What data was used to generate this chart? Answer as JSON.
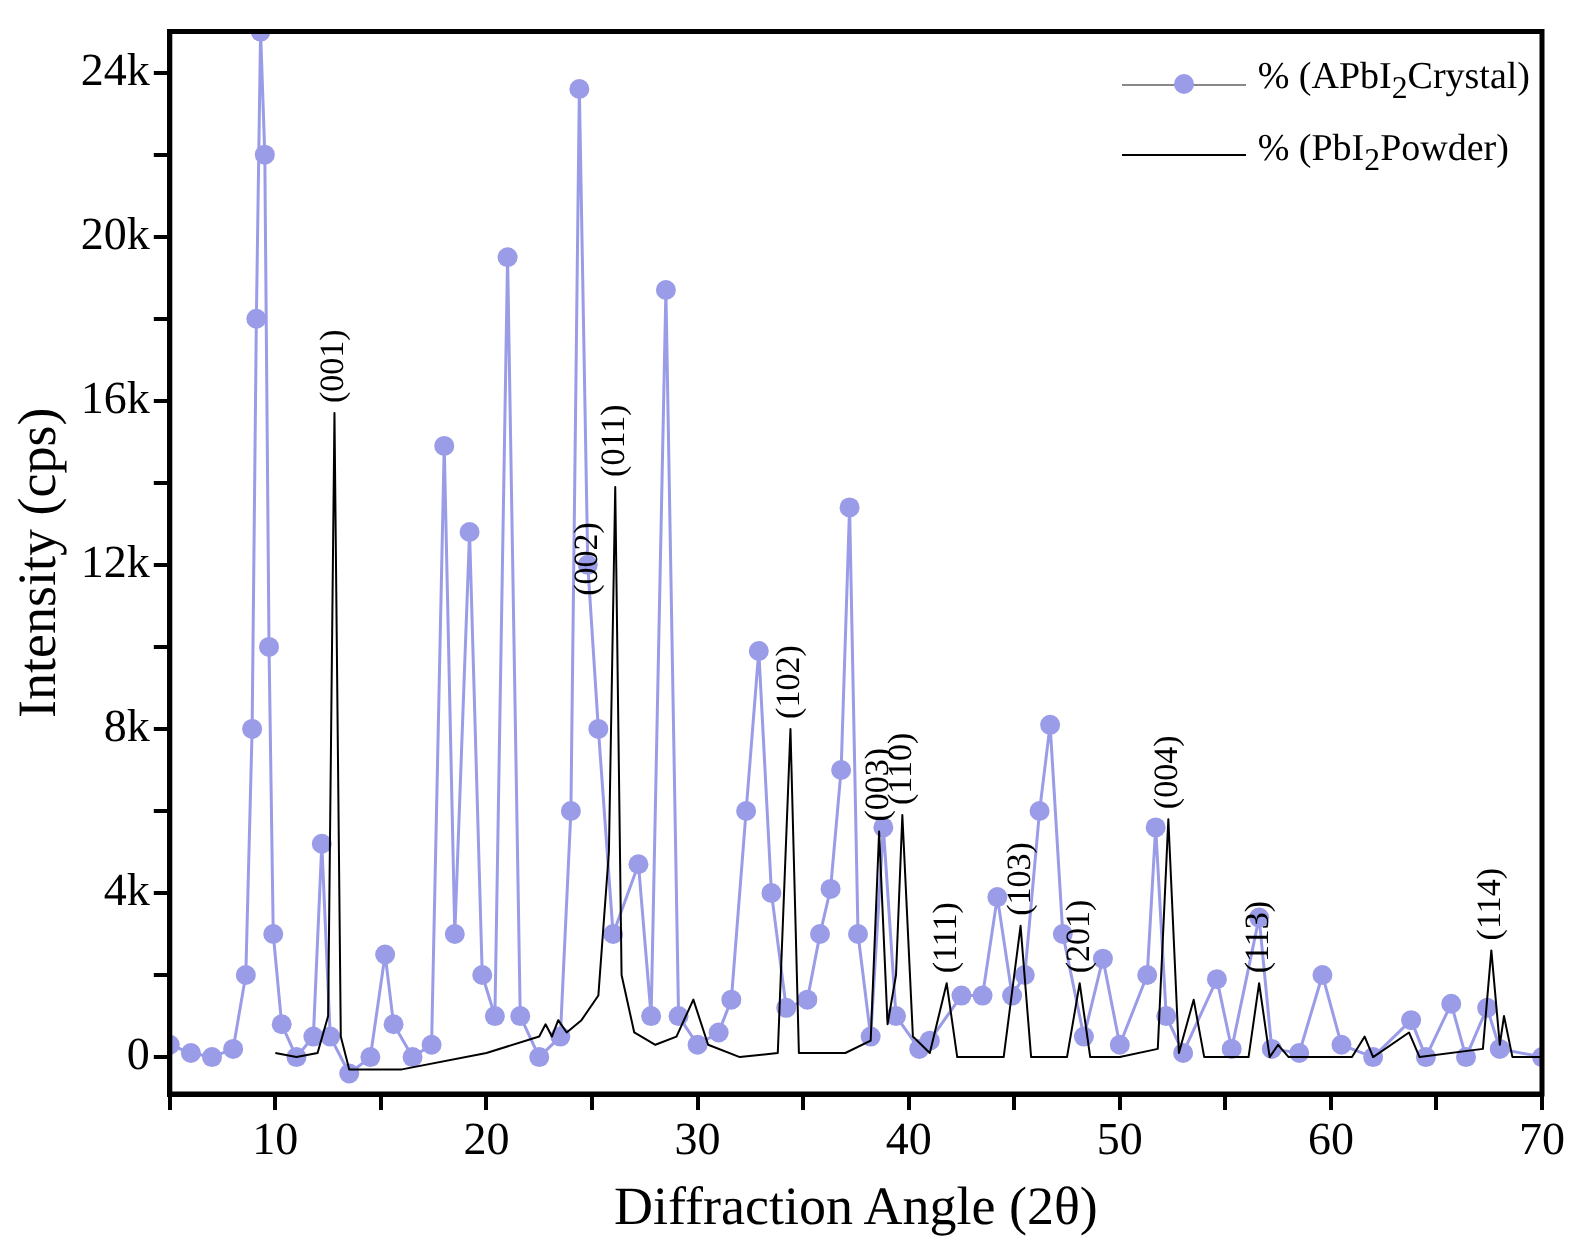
{
  "chart_data": {
    "type": "line",
    "xlabel": "Diffraction Angle (2θ)",
    "ylabel": "Intensity (cps)",
    "xlim": [
      5,
      70
    ],
    "xticks": [
      {
        "value": 5,
        "label": null
      },
      10,
      {
        "value": 15,
        "label": null
      },
      20,
      {
        "value": 25,
        "label": null
      },
      30,
      {
        "value": 35,
        "label": null
      },
      40,
      {
        "value": 45,
        "label": null
      },
      50,
      {
        "value": 55,
        "label": null
      },
      60,
      {
        "value": 65,
        "label": null
      },
      70
    ],
    "ylim": [
      -900,
      25000
    ],
    "yticks": [
      {
        "value": 0,
        "label": "0"
      },
      {
        "value": 2000,
        "label": null
      },
      {
        "value": 4000,
        "label": "4k"
      },
      {
        "value": 6000,
        "label": null
      },
      {
        "value": 8000,
        "label": "8k"
      },
      {
        "value": 10000,
        "label": null
      },
      {
        "value": 12000,
        "label": "12k"
      },
      {
        "value": 14000,
        "label": null
      },
      {
        "value": 16000,
        "label": "16k"
      },
      {
        "value": 18000,
        "label": null
      },
      {
        "value": 20000,
        "label": "20k"
      },
      {
        "value": 22000,
        "label": null
      },
      {
        "value": 24000,
        "label": "24k"
      }
    ],
    "grid": false,
    "legend": "top right",
    "line_style": "solid",
    "series": [
      {
        "name": "% (APbI$_{2}$Crystal)",
        "color": "#9a9ce8",
        "marker": "circle",
        "x": [
          5,
          6,
          7,
          8,
          8.6,
          8.9,
          9.1,
          9.3,
          9.5,
          9.7,
          9.9,
          10.3,
          11,
          11.8,
          12.2,
          12.6,
          13.5,
          14.5,
          15.2,
          15.6,
          16.5,
          17.4,
          18.0,
          18.5,
          19.2,
          19.8,
          20.4,
          21.0,
          21.6,
          22.5,
          23.5,
          24.0,
          24.4,
          24.8,
          25.3,
          26.0,
          27.2,
          27.8,
          28.5,
          29.1,
          30,
          31,
          31.6,
          32.3,
          32.9,
          33.5,
          34.2,
          35.2,
          35.8,
          36.3,
          36.8,
          37.2,
          37.6,
          38.2,
          38.8,
          39.4,
          40.5,
          41,
          42.5,
          43.5,
          44.2,
          44.9,
          45.5,
          46.2,
          46.7,
          47.3,
          48.3,
          49.2,
          50.0,
          51.3,
          51.7,
          52.2,
          53,
          54.6,
          55.3,
          56.6,
          57.2,
          58.5,
          59.6,
          60.5,
          62,
          63.8,
          64.5,
          65.7,
          66.4,
          67.4,
          68,
          70
        ],
        "values": [
          300,
          100,
          0,
          200,
          2000,
          8000,
          18000,
          25000,
          22000,
          10000,
          3000,
          800,
          0,
          500,
          5200,
          500,
          -400,
          0,
          2500,
          800,
          0,
          300,
          14900,
          3000,
          12800,
          2000,
          1000,
          19500,
          1000,
          0,
          500,
          6000,
          23600,
          12000,
          8000,
          3000,
          4700,
          1000,
          18700,
          1000,
          300,
          600,
          1400,
          6000,
          9900,
          4000,
          1200,
          1400,
          3000,
          4100,
          7000,
          13400,
          3000,
          500,
          5600,
          1000,
          200,
          400,
          1500,
          1500,
          3900,
          1500,
          2000,
          6000,
          8100,
          3000,
          500,
          2400,
          300,
          2000,
          5600,
          1000,
          100,
          1900,
          200,
          3400,
          200,
          100,
          2000,
          300,
          0,
          900,
          0,
          1300,
          0,
          1200,
          200,
          0
        ]
      },
      {
        "name": "% (PbI$_{2}$Powder)",
        "color": "#000000",
        "marker": "none",
        "x": [
          10,
          11,
          12,
          12.5,
          12.8,
          13.1,
          13.5,
          16,
          20,
          22.5,
          22.8,
          23.1,
          23.4,
          23.8,
          24.5,
          25.3,
          25.8,
          26.1,
          26.4,
          27,
          28,
          29,
          29.8,
          30.5,
          32,
          33.8,
          34.4,
          34.8,
          37,
          38.2,
          38.6,
          39.0,
          39.4,
          39.7,
          40.2,
          41,
          41.8,
          42.3,
          44.5,
          45.3,
          45.8,
          47.5,
          48.1,
          48.6,
          50,
          51.8,
          52.3,
          52.8,
          53.5,
          54,
          56.1,
          56.6,
          57.1,
          57.5,
          58,
          61,
          61.6,
          62,
          63.7,
          64.2,
          67.2,
          67.6,
          68,
          68.2,
          68.6,
          70
        ],
        "values": [
          100,
          0,
          100,
          1000,
          15700,
          500,
          -300,
          -300,
          100,
          500,
          800,
          500,
          900,
          600,
          900,
          1500,
          5000,
          13900,
          2000,
          600,
          300,
          500,
          1400,
          300,
          0,
          100,
          8000,
          100,
          100,
          400,
          5500,
          800,
          2000,
          5900,
          500,
          100,
          1800,
          0,
          0,
          3200,
          0,
          0,
          1800,
          0,
          0,
          200,
          5800,
          100,
          1400,
          0,
          0,
          1800,
          0,
          300,
          0,
          0,
          500,
          0,
          600,
          0,
          200,
          2600,
          300,
          1000,
          0,
          0
        ]
      }
    ],
    "annotations": [
      {
        "text": "(001)",
        "x": 12.8,
        "y": 15700
      },
      {
        "text": "(002)",
        "x": 24.8,
        "y": 11000
      },
      {
        "text": "(011)",
        "x": 26.1,
        "y": 13900
      },
      {
        "text": "(102)",
        "x": 34.4,
        "y": 8000
      },
      {
        "text": "(003)",
        "x": 38.6,
        "y": 5500
      },
      {
        "text": "(110)",
        "x": 39.7,
        "y": 5900
      },
      {
        "text": "(111)",
        "x": 41.8,
        "y": 1800
      },
      {
        "text": "(103)",
        "x": 45.3,
        "y": 3200
      },
      {
        "text": "(201)",
        "x": 48.1,
        "y": 1800
      },
      {
        "text": "(004)",
        "x": 52.3,
        "y": 5800
      },
      {
        "text": "(113)",
        "x": 56.6,
        "y": 1800
      },
      {
        "text": "(114)",
        "x": 67.6,
        "y": 2600
      }
    ]
  }
}
